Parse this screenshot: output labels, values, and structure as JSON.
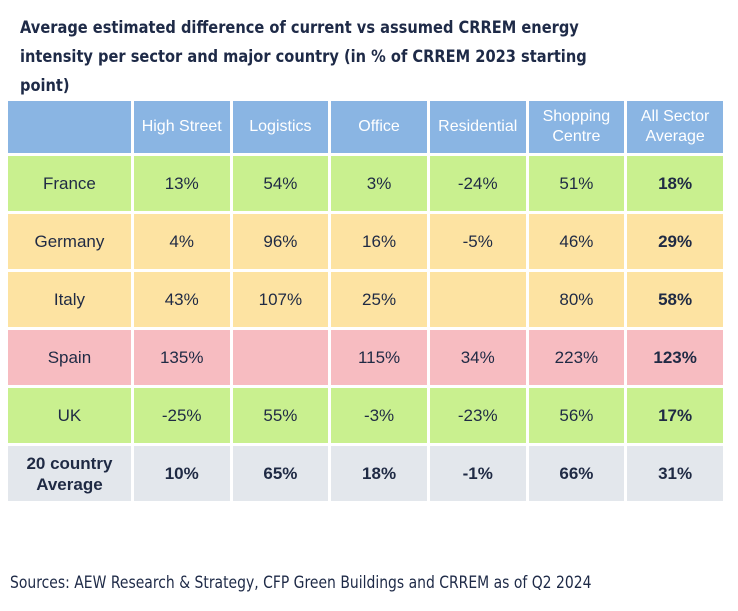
{
  "title": "Average estimated difference of current vs assumed CRREM energy intensity per sector and major country (in % of CRREM 2023 starting point)",
  "source": "Sources: AEW Research & Strategy, CFP Green Buildings and CRREM as of Q2 2024",
  "colors": {
    "header": "#8ab5e3",
    "france": "#c9f08f",
    "germany": "#fde3a2",
    "italy": "#fde3a2",
    "spain": "#f7bcc1",
    "uk": "#c9f08f",
    "average": "#e3e7ec"
  },
  "chart_data": {
    "type": "table",
    "columns": [
      "",
      "High Street",
      "Logistics",
      "Office",
      "Residential",
      "Shopping Centre",
      "All Sector Average"
    ],
    "rows": [
      {
        "label": "France",
        "color_key": "france",
        "cells": [
          "13%",
          "54%",
          "3%",
          "-24%",
          "51%",
          "18%"
        ]
      },
      {
        "label": "Germany",
        "color_key": "germany",
        "cells": [
          "4%",
          "96%",
          "16%",
          "-5%",
          "46%",
          "29%"
        ]
      },
      {
        "label": "Italy",
        "color_key": "italy",
        "cells": [
          "43%",
          "107%",
          "25%",
          "",
          "80%",
          "58%"
        ]
      },
      {
        "label": "Spain",
        "color_key": "spain",
        "cells": [
          "135%",
          "",
          "115%",
          "34%",
          "223%",
          "123%"
        ]
      },
      {
        "label": "UK",
        "color_key": "uk",
        "cells": [
          "-25%",
          "55%",
          "-3%",
          "-23%",
          "56%",
          "17%"
        ]
      },
      {
        "label": "20 country Average",
        "color_key": "average",
        "cells": [
          "10%",
          "65%",
          "18%",
          "-1%",
          "66%",
          "31%"
        ],
        "is_average": true
      }
    ]
  }
}
